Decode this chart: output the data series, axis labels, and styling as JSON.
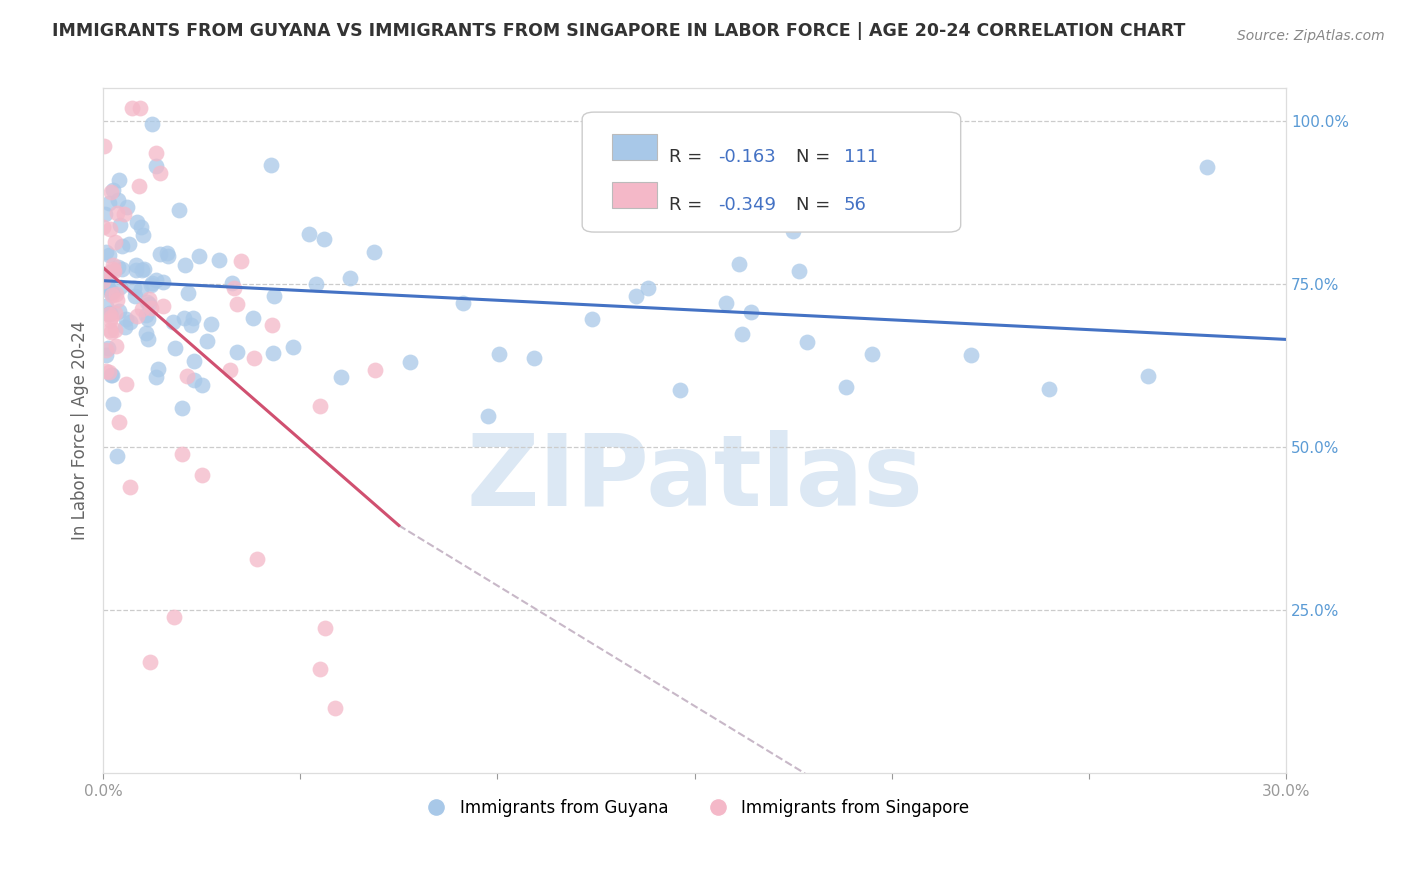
{
  "title": "IMMIGRANTS FROM GUYANA VS IMMIGRANTS FROM SINGAPORE IN LABOR FORCE | AGE 20-24 CORRELATION CHART",
  "source": "Source: ZipAtlas.com",
  "ylabel": "In Labor Force | Age 20-24",
  "xlim": [
    0.0,
    0.3
  ],
  "ylim": [
    0.0,
    1.05
  ],
  "xticks": [
    0.0,
    0.05,
    0.1,
    0.15,
    0.2,
    0.25,
    0.3
  ],
  "xticklabels": [
    "0.0%",
    "",
    "",
    "",
    "",
    "",
    "30.0%"
  ],
  "yticks_right": [
    0.25,
    0.5,
    0.75,
    1.0
  ],
  "ytick_right_labels": [
    "25.0%",
    "50.0%",
    "75.0%",
    "100.0%"
  ],
  "guyana_R": -0.163,
  "guyana_N": 111,
  "singapore_R": -0.349,
  "singapore_N": 56,
  "guyana_color": "#a8c8e8",
  "singapore_color": "#f4b8c8",
  "guyana_line_color": "#4472c4",
  "singapore_line_color": "#d05070",
  "trend_line_dashed_color": "#c8b8c8",
  "watermark": "ZIPatlas",
  "watermark_color": "#dce8f4",
  "title_color": "#333333",
  "source_color": "#888888",
  "background_color": "#ffffff",
  "legend_entry1_text": "R =  -0.163   N = 111",
  "legend_entry2_text": "R =  -0.349   N = 56",
  "bottom_legend1": "Immigrants from Guyana",
  "bottom_legend2": "Immigrants from Singapore",
  "blue_trend": [
    0.0,
    0.755,
    0.3,
    0.665
  ],
  "pink_solid": [
    0.0,
    0.775,
    0.075,
    0.38
  ],
  "pink_dashed": [
    0.075,
    0.38,
    0.3,
    -0.45
  ]
}
